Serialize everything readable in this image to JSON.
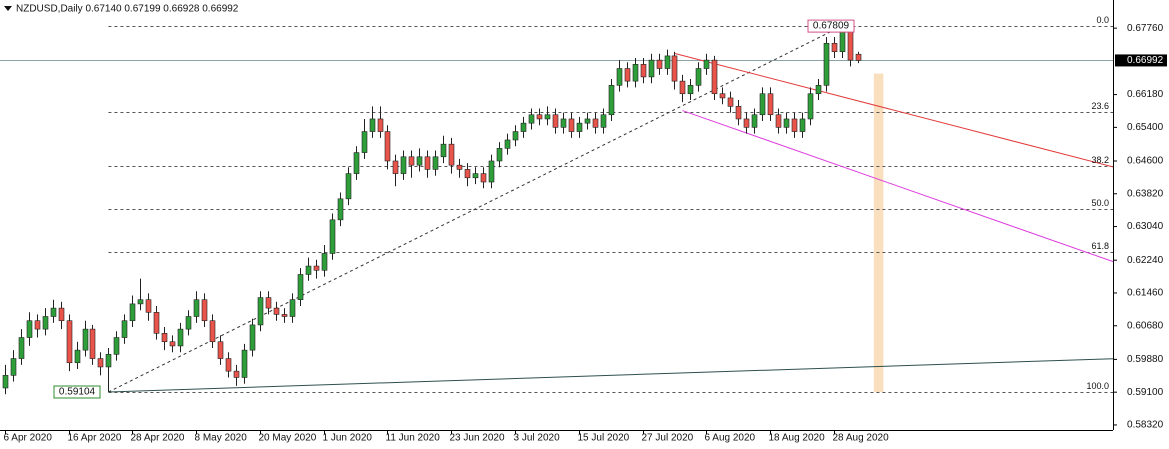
{
  "chart_data": {
    "type": "candlestick",
    "title": "NZDUSD,Daily  0.67140 0.67199 0.66928 0.66992",
    "categories": [
      "6 Apr 2020",
      null,
      null,
      null,
      null,
      null,
      null,
      null,
      "16 Apr 2020",
      null,
      null,
      null,
      null,
      null,
      null,
      null,
      "28 Apr 2020",
      null,
      null,
      null,
      null,
      null,
      null,
      null,
      "8 May 2020",
      null,
      null,
      null,
      null,
      null,
      null,
      null,
      "20 May 2020",
      null,
      null,
      null,
      null,
      null,
      null,
      null,
      "1 Jun 2020",
      null,
      null,
      null,
      null,
      null,
      null,
      null,
      "11 Jun 2020",
      null,
      null,
      null,
      null,
      null,
      null,
      null,
      "23 Jun 2020",
      null,
      null,
      null,
      null,
      null,
      null,
      null,
      "3 Jul 2020",
      null,
      null,
      null,
      null,
      null,
      null,
      null,
      "15 Jul 2020",
      null,
      null,
      null,
      null,
      null,
      null,
      null,
      "27 Jul 2020",
      null,
      null,
      null,
      null,
      null,
      null,
      null,
      "6 Aug 2020",
      null,
      null,
      null,
      null,
      null,
      null,
      null,
      "18 Aug 2020",
      null,
      null,
      null,
      null,
      null,
      null,
      null,
      "28 Aug 2020",
      null,
      null,
      null
    ],
    "open": [
      0.592,
      0.595,
      0.599,
      0.604,
      0.608,
      0.606,
      0.609,
      0.611,
      0.608,
      0.598,
      0.601,
      0.606,
      0.599,
      0.597,
      0.6,
      0.604,
      0.608,
      0.612,
      0.613,
      0.61,
      0.605,
      0.603,
      0.602,
      0.606,
      0.609,
      0.613,
      0.608,
      0.603,
      0.599,
      0.596,
      0.5945,
      0.601,
      0.607,
      0.6135,
      0.611,
      0.6095,
      0.609,
      0.613,
      0.619,
      0.621,
      0.62,
      0.624,
      0.632,
      0.637,
      0.643,
      0.648,
      0.653,
      0.656,
      0.653,
      0.646,
      0.643,
      0.647,
      0.645,
      0.647,
      0.644,
      0.647,
      0.65,
      0.645,
      0.644,
      0.642,
      0.643,
      0.641,
      0.646,
      0.649,
      0.651,
      0.653,
      0.655,
      0.657,
      0.656,
      0.657,
      0.654,
      0.656,
      0.653,
      0.655,
      0.656,
      0.654,
      0.657,
      0.664,
      0.668,
      0.665,
      0.669,
      0.666,
      0.67,
      0.668,
      0.671,
      0.665,
      0.662,
      0.664,
      0.668,
      0.67,
      0.662,
      0.661,
      0.659,
      0.656,
      0.654,
      0.657,
      0.662,
      0.657,
      0.654,
      0.656,
      0.653,
      0.656,
      0.662,
      0.664,
      0.674,
      0.672,
      0.677,
      0.6714
    ],
    "high": [
      0.5975,
      0.601,
      0.606,
      0.61,
      0.6095,
      0.611,
      0.613,
      0.6125,
      0.6095,
      0.603,
      0.608,
      0.607,
      0.6005,
      0.6015,
      0.6055,
      0.6095,
      0.614,
      0.618,
      0.6145,
      0.6115,
      0.6065,
      0.6045,
      0.6075,
      0.6105,
      0.615,
      0.6145,
      0.6095,
      0.6045,
      0.6005,
      0.5975,
      0.6025,
      0.6085,
      0.615,
      0.615,
      0.6125,
      0.611,
      0.6145,
      0.6205,
      0.623,
      0.6225,
      0.626,
      0.6335,
      0.6385,
      0.6445,
      0.6495,
      0.656,
      0.659,
      0.659,
      0.6545,
      0.6475,
      0.6485,
      0.6485,
      0.649,
      0.6485,
      0.6485,
      0.652,
      0.6515,
      0.6465,
      0.6455,
      0.6445,
      0.6445,
      0.6475,
      0.6505,
      0.6525,
      0.6545,
      0.6565,
      0.6585,
      0.6585,
      0.659,
      0.6585,
      0.6575,
      0.6575,
      0.6565,
      0.6575,
      0.6575,
      0.6585,
      0.6655,
      0.67,
      0.6695,
      0.6705,
      0.6705,
      0.6715,
      0.6715,
      0.6725,
      0.672,
      0.6665,
      0.6655,
      0.6695,
      0.6715,
      0.671,
      0.6635,
      0.6625,
      0.6605,
      0.6575,
      0.6585,
      0.6635,
      0.6635,
      0.6585,
      0.6575,
      0.6575,
      0.6575,
      0.6635,
      0.6655,
      0.6755,
      0.6755,
      0.67809,
      0.678,
      0.67199
    ],
    "low": [
      0.5905,
      0.5935,
      0.5975,
      0.602,
      0.604,
      0.6045,
      0.6075,
      0.606,
      0.596,
      0.5965,
      0.5995,
      0.5975,
      0.595,
      0.59104,
      0.5985,
      0.6025,
      0.6065,
      0.6105,
      0.608,
      0.6035,
      0.601,
      0.6005,
      0.6005,
      0.6045,
      0.6075,
      0.6065,
      0.6015,
      0.5975,
      0.5945,
      0.5925,
      0.593,
      0.5995,
      0.6055,
      0.6095,
      0.608,
      0.6075,
      0.6075,
      0.6115,
      0.6175,
      0.618,
      0.6185,
      0.6225,
      0.6305,
      0.6355,
      0.6415,
      0.6465,
      0.6515,
      0.6515,
      0.644,
      0.64,
      0.6415,
      0.642,
      0.6435,
      0.642,
      0.6425,
      0.6455,
      0.643,
      0.642,
      0.64,
      0.6405,
      0.6395,
      0.6395,
      0.6445,
      0.6475,
      0.6495,
      0.6515,
      0.6535,
      0.6545,
      0.6545,
      0.6525,
      0.6525,
      0.6515,
      0.6515,
      0.6535,
      0.6525,
      0.6525,
      0.6555,
      0.6625,
      0.6635,
      0.6635,
      0.6645,
      0.6645,
      0.6665,
      0.6665,
      0.663,
      0.66,
      0.6605,
      0.6625,
      0.6665,
      0.6605,
      0.6595,
      0.6575,
      0.6545,
      0.6525,
      0.6525,
      0.6555,
      0.6555,
      0.6525,
      0.6525,
      0.6515,
      0.6515,
      0.6545,
      0.6605,
      0.6625,
      0.6705,
      0.6705,
      0.6685,
      0.66928
    ],
    "close": [
      0.595,
      0.599,
      0.604,
      0.608,
      0.606,
      0.609,
      0.611,
      0.608,
      0.598,
      0.601,
      0.606,
      0.599,
      0.597,
      0.6,
      0.604,
      0.608,
      0.612,
      0.613,
      0.61,
      0.605,
      0.603,
      0.602,
      0.606,
      0.609,
      0.613,
      0.608,
      0.603,
      0.599,
      0.596,
      0.5945,
      0.601,
      0.607,
      0.6135,
      0.611,
      0.6095,
      0.609,
      0.613,
      0.619,
      0.621,
      0.62,
      0.624,
      0.632,
      0.637,
      0.643,
      0.648,
      0.653,
      0.656,
      0.653,
      0.646,
      0.643,
      0.647,
      0.645,
      0.647,
      0.644,
      0.647,
      0.65,
      0.645,
      0.644,
      0.642,
      0.643,
      0.641,
      0.646,
      0.649,
      0.651,
      0.653,
      0.655,
      0.657,
      0.656,
      0.657,
      0.654,
      0.656,
      0.653,
      0.655,
      0.656,
      0.654,
      0.657,
      0.664,
      0.668,
      0.665,
      0.669,
      0.666,
      0.67,
      0.668,
      0.671,
      0.665,
      0.662,
      0.664,
      0.668,
      0.67,
      0.662,
      0.661,
      0.659,
      0.656,
      0.654,
      0.657,
      0.662,
      0.657,
      0.654,
      0.656,
      0.653,
      0.656,
      0.662,
      0.664,
      0.674,
      0.672,
      0.677,
      0.67,
      0.66992
    ],
    "up_color": "#2e9e3a",
    "down_color": "#e8534b",
    "wick_color": "#222222",
    "xlim": [
      -0.6,
      139
    ],
    "ylim": [
      0.582,
      0.6843
    ],
    "yticks": [
      {
        "value": 0.6776,
        "label": "0.67760"
      },
      {
        "value": 0.6618,
        "label": "0.66180"
      },
      {
        "value": 0.654,
        "label": "0.65400"
      },
      {
        "value": 0.646,
        "label": "0.64600"
      },
      {
        "value": 0.6382,
        "label": "0.63820"
      },
      {
        "value": 0.6304,
        "label": "0.63040"
      },
      {
        "value": 0.6224,
        "label": "0.62240"
      },
      {
        "value": 0.6146,
        "label": "0.61460"
      },
      {
        "value": 0.6068,
        "label": "0.60680"
      },
      {
        "value": 0.5988,
        "label": "0.59880"
      },
      {
        "value": 0.591,
        "label": "0.59100"
      },
      {
        "value": 0.5832,
        "label": "0.58320"
      }
    ],
    "current_price": 0.66992,
    "current_price_color": "#8ea3a8",
    "fibonacci": {
      "color": "#555555",
      "start": 13,
      "levels": [
        {
          "value": 0.67809,
          "label": "0.0"
        },
        {
          "value": 0.65755,
          "label": "23.6"
        },
        {
          "value": 0.64484,
          "label": "38.2"
        },
        {
          "value": 0.634565,
          "label": "50.0"
        },
        {
          "value": 0.62429,
          "label": "61.8"
        },
        {
          "value": 0.59104,
          "label": "100.0"
        }
      ]
    },
    "trendlines": [
      {
        "x": [
          13,
          105
        ],
        "y": [
          0.59104,
          0.67809
        ],
        "color": "#333333",
        "dash": true
      },
      {
        "x": [
          84,
          140
        ],
        "y": [
          0.6716,
          0.6441
        ],
        "color": "#e23b3b",
        "dash": false
      },
      {
        "x": [
          85,
          140
        ],
        "y": [
          0.658,
          0.6214
        ],
        "color": "#dd3fdd",
        "dash": false
      },
      {
        "x": [
          13,
          146
        ],
        "y": [
          0.59104,
          0.5994
        ],
        "color": "#2f4f4f",
        "dash": false
      }
    ],
    "rectangle": {
      "x": [
        109,
        110.2
      ],
      "y": [
        0.59104,
        0.6668
      ],
      "color": "#f9dfbd"
    }
  }
}
